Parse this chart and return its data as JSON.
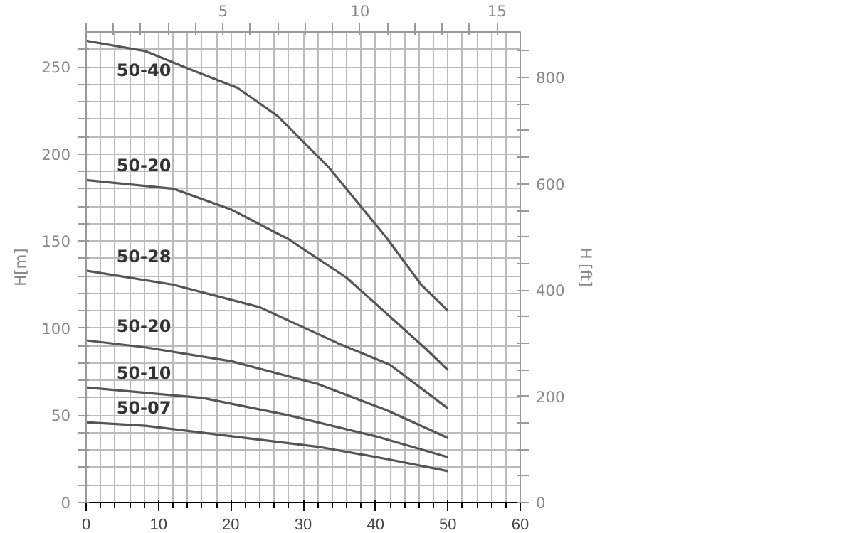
{
  "chart_data": {
    "type": "line",
    "ylabel": "H[m]",
    "y2label": "H [ft]",
    "xlim": [
      0,
      60
    ],
    "ylim": [
      0,
      270
    ],
    "y2lim": [
      0,
      886
    ],
    "x2lim": [
      0,
      15.85
    ],
    "xticks": [
      0,
      {
        "value": 2,
        "label": null
      },
      {
        "value": 4,
        "label": null
      },
      {
        "value": 6,
        "label": null
      },
      {
        "value": 8,
        "label": null
      },
      10,
      {
        "value": 12,
        "label": null
      },
      {
        "value": 14,
        "label": null
      },
      {
        "value": 16,
        "label": null
      },
      {
        "value": 18,
        "label": null
      },
      20,
      {
        "value": 22,
        "label": null
      },
      {
        "value": 24,
        "label": null
      },
      {
        "value": 26,
        "label": null
      },
      {
        "value": 28,
        "label": null
      },
      30,
      {
        "value": 32,
        "label": null
      },
      {
        "value": 34,
        "label": null
      },
      {
        "value": 36,
        "label": null
      },
      {
        "value": 38,
        "label": null
      },
      40,
      {
        "value": 42,
        "label": null
      },
      {
        "value": 44,
        "label": null
      },
      {
        "value": 46,
        "label": null
      },
      {
        "value": 48,
        "label": null
      },
      50,
      {
        "value": 52,
        "label": null
      },
      {
        "value": 54,
        "label": null
      },
      {
        "value": 56,
        "label": null
      },
      {
        "value": 58,
        "label": null
      },
      60
    ],
    "yticks": [
      0,
      {
        "value": 10,
        "label": null
      },
      {
        "value": 20,
        "label": null
      },
      {
        "value": 30,
        "label": null
      },
      {
        "value": 40,
        "label": null
      },
      50,
      {
        "value": 60,
        "label": null
      },
      {
        "value": 70,
        "label": null
      },
      {
        "value": 80,
        "label": null
      },
      {
        "value": 90,
        "label": null
      },
      100,
      {
        "value": 110,
        "label": null
      },
      {
        "value": 120,
        "label": null
      },
      {
        "value": 130,
        "label": null
      },
      {
        "value": 140,
        "label": null
      },
      150,
      {
        "value": 160,
        "label": null
      },
      {
        "value": 170,
        "label": null
      },
      {
        "value": 180,
        "label": null
      },
      {
        "value": 190,
        "label": null
      },
      200,
      {
        "value": 210,
        "label": null
      },
      {
        "value": 220,
        "label": null
      },
      {
        "value": 230,
        "label": null
      },
      {
        "value": 240,
        "label": null
      },
      250,
      {
        "value": 260,
        "label": null
      }
    ],
    "y2ticks": [
      0,
      {
        "value": 50,
        "label": null
      },
      {
        "value": 100,
        "label": null
      },
      {
        "value": 150,
        "label": null
      },
      200,
      {
        "value": 250,
        "label": null
      },
      {
        "value": 300,
        "label": null
      },
      {
        "value": 350,
        "label": null
      },
      400,
      {
        "value": 450,
        "label": null
      },
      {
        "value": 500,
        "label": null
      },
      {
        "value": 550,
        "label": null
      },
      600,
      {
        "value": 650,
        "label": null
      },
      {
        "value": 700,
        "label": null
      },
      {
        "value": 750,
        "label": null
      },
      800,
      {
        "value": 850,
        "label": null
      }
    ],
    "x2ticks": [
      {
        "value": 0,
        "label": null
      },
      {
        "value": 1,
        "label": null
      },
      {
        "value": 2,
        "label": null
      },
      {
        "value": 3,
        "label": null
      },
      {
        "value": 4,
        "label": null
      },
      5,
      {
        "value": 6,
        "label": null
      },
      {
        "value": 7,
        "label": null
      },
      {
        "value": 8,
        "label": null
      },
      {
        "value": 9,
        "label": null
      },
      10,
      {
        "value": 11,
        "label": null
      },
      {
        "value": 12,
        "label": null
      },
      {
        "value": 13,
        "label": null
      },
      {
        "value": 14,
        "label": null
      },
      15
    ],
    "grid": true,
    "marker": "none",
    "line_style": "solid",
    "series": [
      {
        "name": "50-40",
        "color": "#555555",
        "x": [
          0,
          8.2,
          14.1,
          20.9,
          26.4,
          33.6,
          41.5,
          46.3,
          50
        ],
        "values": [
          265,
          259,
          249,
          238,
          222,
          192,
          152,
          125,
          110
        ]
      },
      {
        "name": "50-20",
        "color": "#555555",
        "x": [
          0,
          12.1,
          20.1,
          28,
          36,
          47,
          50
        ],
        "values": [
          185,
          180,
          168,
          151,
          129,
          88,
          76
        ]
      },
      {
        "name": "50-28",
        "color": "#555555",
        "x": [
          0,
          12,
          24,
          35,
          42,
          50
        ],
        "values": [
          133,
          125,
          112,
          91,
          79,
          54
        ]
      },
      {
        "name": "50-20",
        "color": "#555555",
        "x": [
          0,
          8.2,
          20.1,
          32,
          41.5,
          50
        ],
        "values": [
          93,
          89,
          81,
          68,
          53,
          37
        ]
      },
      {
        "name": "50-10",
        "color": "#555555",
        "x": [
          0,
          16.1,
          28,
          40,
          50
        ],
        "values": [
          66,
          60,
          50,
          38,
          26
        ]
      },
      {
        "name": "50-07",
        "color": "#555555",
        "x": [
          0,
          8.2,
          20.1,
          32,
          41.5,
          50
        ],
        "values": [
          46,
          44,
          38,
          32,
          25,
          18
        ]
      }
    ]
  }
}
